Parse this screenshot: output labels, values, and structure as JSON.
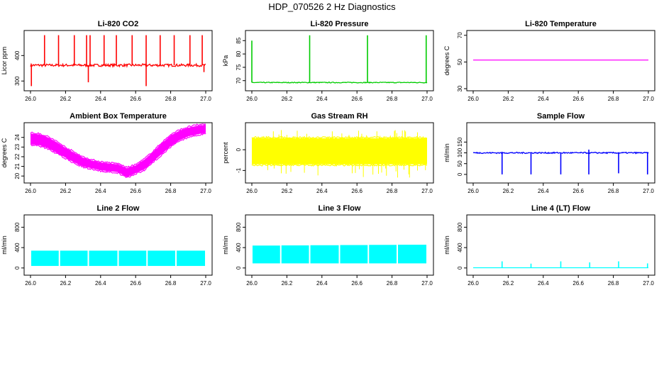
{
  "title": "HDP_070526  2 Hz Diagnostics",
  "chart_data": [
    {
      "type": "line",
      "title": "Li-820 CO2",
      "ylabel": "Licor ppm",
      "color": "#ff0000",
      "xlim": [
        26.0,
        27.0
      ],
      "ylim": [
        270,
        490
      ],
      "xticks": [
        "26.0",
        "26.2",
        "26.4",
        "26.6",
        "26.8",
        "27.0"
      ],
      "yticks": [
        300,
        400
      ],
      "series": [
        {
          "baseline": 362,
          "noise": 5,
          "spikes_up": [
            [
              26.08,
              480
            ],
            [
              26.16,
              480
            ],
            [
              26.25,
              480
            ],
            [
              26.32,
              480
            ],
            [
              26.34,
              480
            ],
            [
              26.42,
              480
            ],
            [
              26.49,
              480
            ],
            [
              26.58,
              480
            ],
            [
              26.66,
              480
            ],
            [
              26.74,
              480
            ],
            [
              26.82,
              480
            ],
            [
              26.91,
              480
            ],
            [
              26.98,
              480
            ]
          ],
          "spikes_down": [
            [
              26.005,
              280
            ],
            [
              26.33,
              295
            ],
            [
              26.66,
              280
            ],
            [
              26.99,
              335
            ]
          ]
        }
      ]
    },
    {
      "type": "line",
      "title": "Li-820 Pressure",
      "ylabel": "kPa",
      "color": "#00cc00",
      "xlim": [
        26.0,
        27.0
      ],
      "ylim": [
        67,
        88
      ],
      "xticks": [
        "26.0",
        "26.2",
        "26.4",
        "26.6",
        "26.8",
        "27.0"
      ],
      "yticks": [
        70,
        75,
        80,
        85
      ],
      "series": [
        {
          "baseline": 69.3,
          "noise": 0.15,
          "spikes_up": [
            [
              26.0,
              85
            ],
            [
              26.33,
              87
            ],
            [
              26.66,
              87
            ],
            [
              26.995,
              87
            ]
          ],
          "spikes_down": []
        }
      ]
    },
    {
      "type": "line",
      "title": "Li-820 Temperature",
      "ylabel": "degrees C",
      "color": "#ff00ff",
      "xlim": [
        26.0,
        27.0
      ],
      "ylim": [
        30,
        72
      ],
      "xticks": [
        "26.0",
        "26.2",
        "26.4",
        "26.6",
        "26.8",
        "27.0"
      ],
      "yticks": [
        30,
        50,
        70
      ],
      "series": [
        {
          "baseline": 51.5,
          "noise": 0,
          "spikes_up": [],
          "spikes_down": []
        }
      ]
    },
    {
      "type": "area",
      "title": "Ambient Box Temperature",
      "ylabel": "degrees C",
      "color": "#ff00ff",
      "xlim": [
        26.0,
        27.0
      ],
      "ylim": [
        19.5,
        25.3
      ],
      "xticks": [
        "26.0",
        "26.2",
        "26.4",
        "26.6",
        "26.8",
        "27.0"
      ],
      "yticks": [
        20,
        21,
        22,
        23,
        24
      ],
      "series": [
        {
          "x": [
            26.0,
            26.05,
            26.1,
            26.15,
            26.2,
            26.25,
            26.3,
            26.35,
            26.4,
            26.45,
            26.5,
            26.55,
            26.6,
            26.65,
            26.7,
            26.75,
            26.8,
            26.85,
            26.9,
            26.95,
            27.0
          ],
          "low": [
            23.3,
            23.2,
            22.9,
            22.4,
            21.9,
            21.4,
            21.0,
            20.8,
            20.6,
            20.5,
            20.4,
            19.9,
            20.3,
            20.7,
            21.5,
            22.3,
            23.1,
            23.7,
            24.1,
            24.3,
            24.5
          ],
          "high": [
            24.4,
            24.3,
            24.0,
            23.5,
            22.9,
            22.4,
            21.9,
            21.6,
            21.4,
            21.3,
            21.2,
            20.8,
            21.1,
            21.7,
            22.5,
            23.4,
            24.2,
            24.7,
            25.0,
            25.2,
            25.3
          ]
        }
      ]
    },
    {
      "type": "area",
      "title": "Gas Stream RH",
      "ylabel": "percent",
      "color": "#ffff00",
      "xlim": [
        26.0,
        27.0
      ],
      "ylim": [
        -1.5,
        1.2
      ],
      "xticks": [
        "26.0",
        "26.2",
        "26.4",
        "26.6",
        "26.8",
        "27.0"
      ],
      "yticks": [
        -1.0,
        0.0
      ],
      "series": [
        {
          "x": [
            26.0,
            27.0
          ],
          "low": [
            -0.7,
            -0.7
          ],
          "high": [
            0.55,
            0.55
          ],
          "outlier_low": -1.35,
          "outlier_high": 0.95
        }
      ]
    },
    {
      "type": "line",
      "title": "Sample Flow",
      "ylabel": "ml/min",
      "color": "#0000ff",
      "xlim": [
        26.0,
        27.0
      ],
      "ylim": [
        -30,
        230
      ],
      "xticks": [
        "26.0",
        "26.2",
        "26.4",
        "26.6",
        "26.8",
        "27.0"
      ],
      "yticks": [
        0,
        50,
        100,
        150
      ],
      "series": [
        {
          "baseline": 100,
          "noise": 3,
          "spikes_up": [
            [
              26.66,
              115
            ]
          ],
          "spikes_down": [
            [
              26.165,
              0
            ],
            [
              26.33,
              0
            ],
            [
              26.5,
              0
            ],
            [
              26.66,
              0
            ],
            [
              26.83,
              5
            ],
            [
              26.995,
              0
            ]
          ]
        }
      ]
    },
    {
      "type": "area",
      "title": "Line 2 Flow",
      "ylabel": "ml/min",
      "color": "#00ffff",
      "xlim": [
        26.0,
        27.0
      ],
      "ylim": [
        -100,
        1000
      ],
      "xticks": [
        "26.0",
        "26.2",
        "26.4",
        "26.6",
        "26.8",
        "27.0"
      ],
      "yticks": [
        0,
        400,
        800
      ],
      "series": [
        {
          "x": [
            26.0,
            27.0
          ],
          "low": [
            40,
            40
          ],
          "high": [
            340,
            340
          ],
          "gaps": [
            26.165,
            26.33,
            26.5,
            26.665,
            26.83
          ]
        }
      ]
    },
    {
      "type": "area",
      "title": "Line 3 Flow",
      "ylabel": "ml/min",
      "color": "#00ffff",
      "xlim": [
        26.0,
        27.0
      ],
      "ylim": [
        -100,
        1000
      ],
      "xticks": [
        "26.0",
        "26.2",
        "26.4",
        "26.6",
        "26.8",
        "27.0"
      ],
      "yticks": [
        0,
        400,
        800
      ],
      "series": [
        {
          "x": [
            26.0,
            27.0
          ],
          "low": [
            90,
            90
          ],
          "high": [
            440,
            460
          ],
          "gaps": [
            26.165,
            26.33,
            26.5,
            26.665,
            26.83
          ]
        }
      ]
    },
    {
      "type": "line",
      "title": "Line 4 (LT) Flow",
      "ylabel": "ml/min",
      "color": "#00ffff",
      "xlim": [
        26.0,
        27.0
      ],
      "ylim": [
        -100,
        1000
      ],
      "xticks": [
        "26.0",
        "26.2",
        "26.4",
        "26.6",
        "26.8",
        "27.0"
      ],
      "yticks": [
        0,
        400,
        800
      ],
      "series": [
        {
          "baseline": 5,
          "noise": 0,
          "spikes_up": [
            [
              26.165,
              130
            ],
            [
              26.33,
              85
            ],
            [
              26.5,
              130
            ],
            [
              26.665,
              110
            ],
            [
              26.83,
              130
            ],
            [
              26.995,
              90
            ]
          ],
          "spikes_down": []
        }
      ]
    }
  ]
}
